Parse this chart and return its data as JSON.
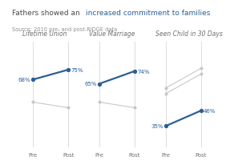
{
  "title_normal": "Fathers showed an ",
  "title_highlight": "increased commitment to families",
  "source": "Source: 2010 pre- and post-RIDGE data",
  "panels": [
    {
      "label": "Lifetime Union",
      "pre_blue": 68,
      "post_blue": 75,
      "pre_gray": 52,
      "post_gray": 48,
      "label_pre_blue": "68%",
      "label_post_blue": "75%"
    },
    {
      "label": "Value Marriage",
      "pre_blue": 65,
      "post_blue": 74,
      "pre_gray": 52,
      "post_gray": 48,
      "label_pre_blue": "65%",
      "label_post_blue": "74%"
    },
    {
      "label": "Seen Child in 30 Days",
      "pre_blue": 35,
      "post_blue": 46,
      "pre_gray1": 62,
      "post_gray1": 76,
      "pre_gray2": 58,
      "post_gray2": 72,
      "label_pre_blue": "35%",
      "label_post_blue": "46%"
    }
  ],
  "blue_color": "#2b5f96",
  "gray_color": "#c8c8c8",
  "title_color": "#4a4a4a",
  "highlight_color": "#2b5f96",
  "source_color": "#909090",
  "label_color": "#707070",
  "axis_color": "#d8d8d8",
  "pre_label": "Pre",
  "post_label": "Post",
  "ylim": [
    20,
    95
  ],
  "title_fontsize": 6.5,
  "source_fontsize": 4.8,
  "panel_label_fontsize": 5.5,
  "tick_fontsize": 5.0,
  "value_fontsize": 5.0
}
